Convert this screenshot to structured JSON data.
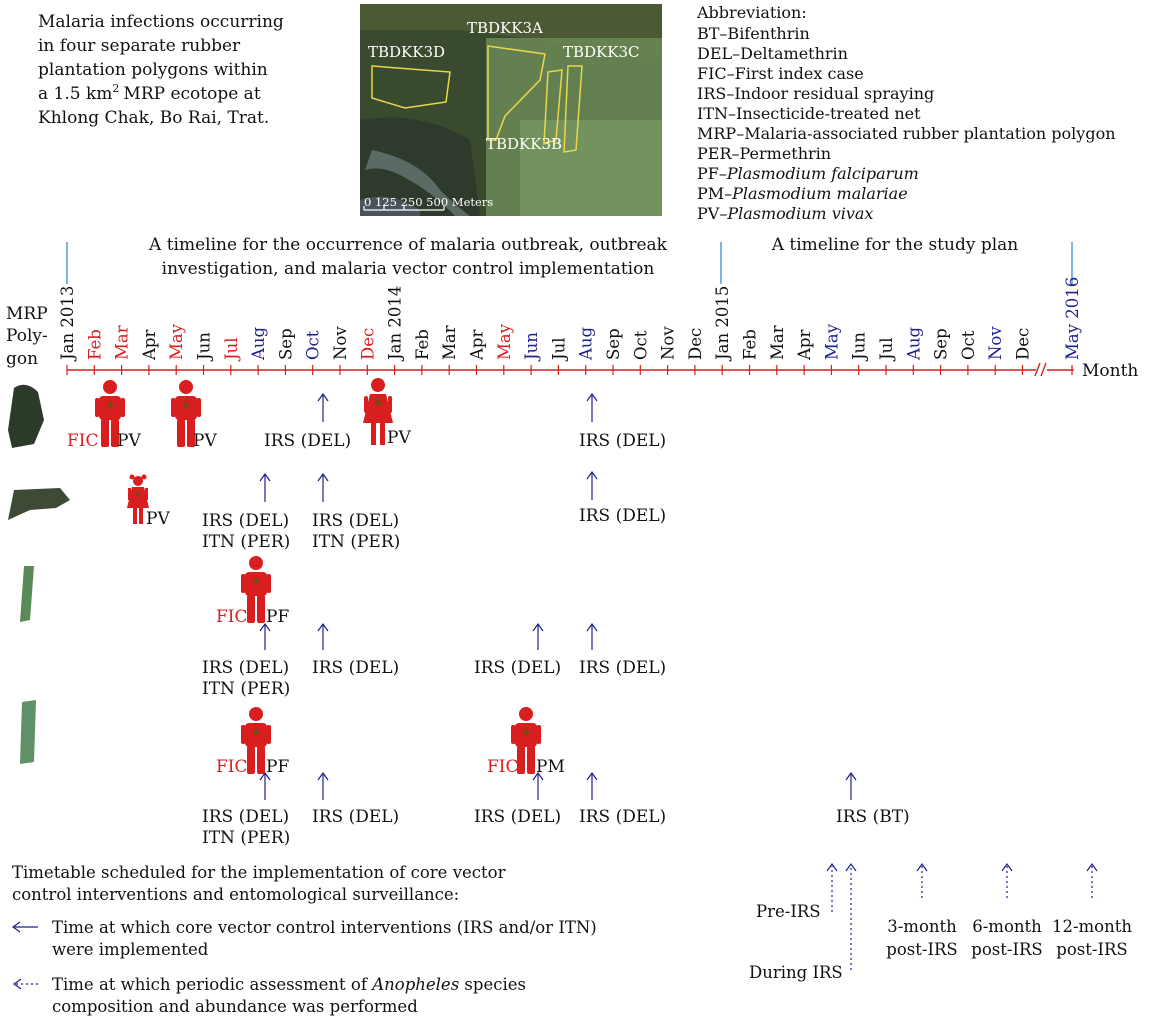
{
  "intro": {
    "lines": [
      "Malaria infections occurring",
      "in four separate rubber",
      "plantation polygons within",
      "a 1.5 km",
      "MRP ecotope at",
      "Khlong Chak, Bo Rai, Trat."
    ],
    "superscript": "2"
  },
  "map": {
    "labels": {
      "d": "TBDKK3D",
      "a": "TBDKK3A",
      "c": "TBDKK3C",
      "b": "TBDKK3B"
    },
    "scale_label": "0 125 250 500 Meters"
  },
  "abbreviations": {
    "title": "Abbreviation:",
    "items": [
      {
        "text": "BT–Bifenthrin",
        "italic": ""
      },
      {
        "text": "DEL–Deltamethrin",
        "italic": ""
      },
      {
        "text": "FIC–First index case",
        "italic": ""
      },
      {
        "text": "IRS–Indoor residual spraying",
        "italic": ""
      },
      {
        "text": "ITN–Insecticide-treated net",
        "italic": ""
      },
      {
        "text": "MRP–Malaria-associated rubber plantation polygon",
        "italic": ""
      },
      {
        "text": "PER–Permethrin",
        "italic": ""
      },
      {
        "text": "PF–",
        "italic": "Plasmodium falciparum"
      },
      {
        "text": "PM–",
        "italic": "Plasmodium malariae"
      },
      {
        "text": "PV–",
        "italic": "Plasmodium vivax"
      }
    ]
  },
  "timeline_titles": {
    "left": [
      "A timeline for the occurrence of malaria outbreak, outbreak",
      "investigation, and malaria vector control implementation"
    ],
    "right": "A timeline for the study plan"
  },
  "axis": {
    "row_label": [
      "MRP",
      "Poly-",
      "gon"
    ],
    "end_label": "Month",
    "months": [
      {
        "label": "Jan 2013",
        "color": "#111111"
      },
      {
        "label": "Feb",
        "color": "#d81e1e"
      },
      {
        "label": "Mar",
        "color": "#d81e1e"
      },
      {
        "label": "Apr",
        "color": "#111111"
      },
      {
        "label": "May",
        "color": "#d81e1e"
      },
      {
        "label": "Jun",
        "color": "#111111"
      },
      {
        "label": "Jul",
        "color": "#d81e1e"
      },
      {
        "label": "Aug",
        "color": "#1f1f8f"
      },
      {
        "label": "Sep",
        "color": "#111111"
      },
      {
        "label": "Oct",
        "color": "#1f1f8f"
      },
      {
        "label": "Nov",
        "color": "#111111"
      },
      {
        "label": "Dec",
        "color": "#d81e1e"
      },
      {
        "label": "Jan 2014",
        "color": "#111111"
      },
      {
        "label": "Feb",
        "color": "#111111"
      },
      {
        "label": "Mar",
        "color": "#111111"
      },
      {
        "label": "Apr",
        "color": "#111111"
      },
      {
        "label": "May",
        "color": "#d81e1e"
      },
      {
        "label": "Jun",
        "color": "#1f1f8f"
      },
      {
        "label": "Jul",
        "color": "#111111"
      },
      {
        "label": "Aug",
        "color": "#1f1f8f"
      },
      {
        "label": "Sep",
        "color": "#111111"
      },
      {
        "label": "Oct",
        "color": "#111111"
      },
      {
        "label": "Nov",
        "color": "#111111"
      },
      {
        "label": "Dec",
        "color": "#111111"
      },
      {
        "label": "Jan 2015",
        "color": "#111111"
      },
      {
        "label": "Feb",
        "color": "#111111"
      },
      {
        "label": "Mar",
        "color": "#111111"
      },
      {
        "label": "Apr",
        "color": "#111111"
      },
      {
        "label": "May",
        "color": "#1f1f8f"
      },
      {
        "label": "Jun",
        "color": "#111111"
      },
      {
        "label": "Jul",
        "color": "#111111"
      },
      {
        "label": "Aug",
        "color": "#1f1f8f"
      },
      {
        "label": "Sep",
        "color": "#111111"
      },
      {
        "label": "Oct",
        "color": "#111111"
      },
      {
        "label": "Nov",
        "color": "#1f1f8f"
      },
      {
        "label": "Dec",
        "color": "#111111"
      },
      {
        "label": "May 2016",
        "color": "#1f1f8f"
      }
    ]
  },
  "events": {
    "row1": {
      "fic": "FIC",
      "pv1": "PV",
      "pv2": "PV",
      "irs_oct": "IRS (DEL)",
      "pv3": "PV",
      "irs_aug": "IRS (DEL)"
    },
    "row2": {
      "pv": "PV",
      "irs_itn_aug": [
        "IRS (DEL)",
        "ITN (PER)"
      ],
      "irs_itn_oct": [
        "IRS (DEL)",
        "ITN (PER)"
      ],
      "irs_aug14": "IRS (DEL)"
    },
    "row3": {
      "fic": "FIC",
      "pf": "PF",
      "irs_itn": [
        "IRS (DEL)",
        "ITN (PER)"
      ],
      "irs_oct": "IRS (DEL)",
      "irs_jun": "IRS (DEL)",
      "irs_aug": "IRS (DEL)"
    },
    "row4": {
      "fic": "FIC",
      "pf": "PF",
      "irs_itn": [
        "IRS (DEL)",
        "ITN (PER)"
      ],
      "irs_oct": "IRS (DEL)",
      "fic2": "FIC",
      "pm": "PM",
      "irs_jun": "IRS (DEL)",
      "irs_aug": "IRS (DEL)",
      "irs_bt": "IRS (BT)"
    }
  },
  "surveillance": {
    "pre": "Pre-IRS",
    "during": "During IRS",
    "m3": [
      "3-month",
      "post-IRS"
    ],
    "m6": [
      "6-month",
      "post-IRS"
    ],
    "m12": [
      "12-month",
      "post-IRS"
    ]
  },
  "legend": {
    "title": [
      "Timetable scheduled for the implementation of core vector",
      "control interventions and entomological surveillance:"
    ],
    "arrow_text": [
      "Time at which core vector control interventions (IRS and/or ITN)",
      "were implemented"
    ],
    "dotted_text_pre": "Time at which periodic assessment of ",
    "dotted_text_italic": "Anopheles",
    "dotted_text_post": " species",
    "dotted_text_line2": "composition and abundance was performed"
  },
  "colors": {
    "axis": "#d81e1e",
    "arrow": "#1f1f8f",
    "person": "#d81e1e",
    "text": "#111111",
    "blue_line": "#2a86c8"
  }
}
